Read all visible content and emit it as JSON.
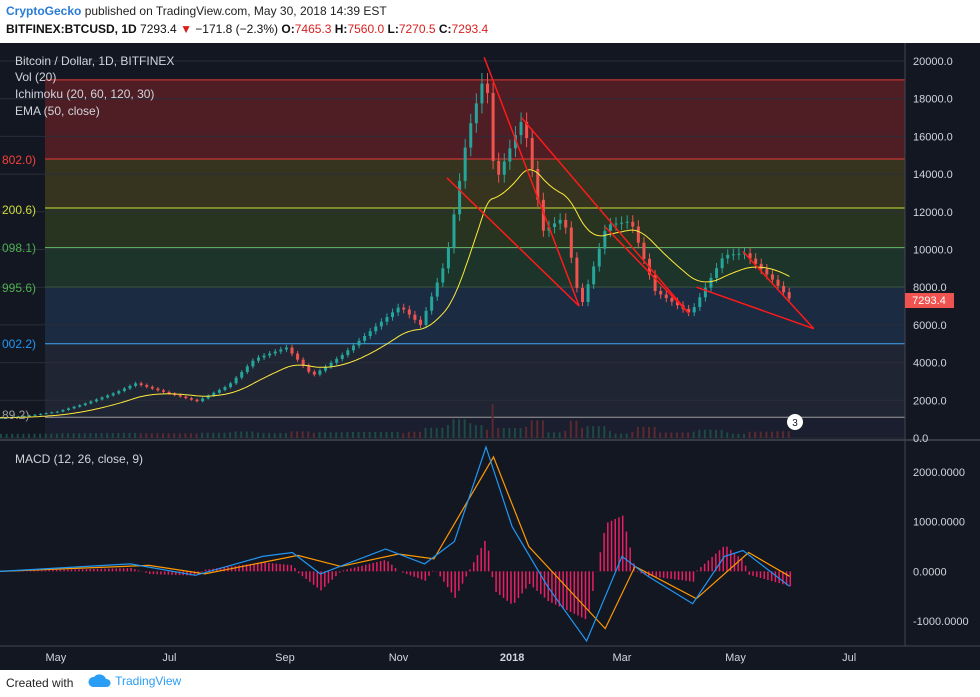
{
  "header": {
    "author": "CryptoGecko",
    "published": "published on TradingView.com, May 30, 2018 14:39 EST",
    "symbol": "BITFINEX:BTCUSD, 1D",
    "last": "7293.4",
    "change": "−171.8 (−2.3%)",
    "o_label": "O:",
    "o_value": "7465.3",
    "h_label": "H:",
    "h_value": "7560.0",
    "l_label": "L:",
    "l_value": "7270.5",
    "c_label": "C:",
    "c_value": "7293.4"
  },
  "legend": {
    "title": "Bitcoin / Dollar, 1D, BITFINEX",
    "vol": "Vol (20)",
    "ichimoku": "Ichimoku (20, 60, 120, 30)",
    "ema": "EMA (50, close)",
    "macd": "MACD (12, 26, close, 9)"
  },
  "price_label": "7293.4",
  "volume_badge": "3",
  "fib_labels": [
    "802.0)",
    "200.6)",
    "098.1)",
    "995.6)",
    "002.2)",
    "89.2)"
  ],
  "footer": {
    "created": "Created with",
    "brand": "TradingView"
  },
  "colors": {
    "up": "#26a69a",
    "down": "#ef5350",
    "background": "#131722",
    "macd_line": "#2196f3",
    "signal_line": "#ff9800",
    "hist": "#e91e63",
    "trendline": "#ff1a1a"
  },
  "chart_data": [
    {
      "type": "line",
      "title": "Bitcoin / Dollar, 1D, BITFINEX",
      "x_ticks": [
        "May",
        "Jul",
        "Sep",
        "Nov",
        "2018",
        "Mar",
        "May",
        "Jul"
      ],
      "y_ticks": [
        "20000.0",
        "18000.0",
        "16000.0",
        "14000.0",
        "12000.0",
        "10000.0",
        "8000.0",
        "6000.0",
        "4000.0",
        "2000.0",
        "0.0"
      ],
      "ylim": [
        0,
        20000
      ],
      "x_range": [
        "2017-04-01",
        "2018-07-31"
      ],
      "series": [
        {
          "values": [
            {
              "x": "2017-04-01",
              "y": 1080
            },
            {
              "x": "2017-04-15",
              "y": 1180
            },
            {
              "x": "2017-05-01",
              "y": 1400
            },
            {
              "x": "2017-05-15",
              "y": 1800
            },
            {
              "x": "2017-06-01",
              "y": 2400
            },
            {
              "x": "2017-06-12",
              "y": 2900
            },
            {
              "x": "2017-06-25",
              "y": 2500
            },
            {
              "x": "2017-07-15",
              "y": 1950
            },
            {
              "x": "2017-08-01",
              "y": 2800
            },
            {
              "x": "2017-08-15",
              "y": 4200
            },
            {
              "x": "2017-09-01",
              "y": 4800
            },
            {
              "x": "2017-09-15",
              "y": 3300
            },
            {
              "x": "2017-10-01",
              "y": 4400
            },
            {
              "x": "2017-10-20",
              "y": 6000
            },
            {
              "x": "2017-11-01",
              "y": 7000
            },
            {
              "x": "2017-11-12",
              "y": 6000
            },
            {
              "x": "2017-11-26",
              "y": 9500
            },
            {
              "x": "2017-12-07",
              "y": 16000
            },
            {
              "x": "2017-12-17",
              "y": 19500
            },
            {
              "x": "2017-12-22",
              "y": 13500
            },
            {
              "x": "2018-01-06",
              "y": 17000
            },
            {
              "x": "2018-01-17",
              "y": 11000
            },
            {
              "x": "2018-01-28",
              "y": 11700
            },
            {
              "x": "2018-02-06",
              "y": 6900
            },
            {
              "x": "2018-02-20",
              "y": 11300
            },
            {
              "x": "2018-03-05",
              "y": 11500
            },
            {
              "x": "2018-03-18",
              "y": 7800
            },
            {
              "x": "2018-04-06",
              "y": 6600
            },
            {
              "x": "2018-04-24",
              "y": 9700
            },
            {
              "x": "2018-05-05",
              "y": 9800
            },
            {
              "x": "2018-05-20",
              "y": 8400
            },
            {
              "x": "2018-05-30",
              "y": 7293
            }
          ]
        }
      ],
      "fib_levels": [
        19000,
        14800,
        12200,
        10100,
        8000,
        5000,
        1100
      ],
      "trendlines": [
        {
          "from": {
            "x": "2017-12-17",
            "y": 20200
          },
          "to": {
            "x": "2018-02-06",
            "y": 7000
          }
        },
        {
          "from": {
            "x": "2017-11-27",
            "y": 13800
          },
          "to": {
            "x": "2018-02-06",
            "y": 7000
          }
        },
        {
          "from": {
            "x": "2018-01-06",
            "y": 17000
          },
          "to": {
            "x": "2018-04-06",
            "y": 6600
          }
        },
        {
          "from": {
            "x": "2018-02-20",
            "y": 11200
          },
          "to": {
            "x": "2018-04-06",
            "y": 6600
          }
        },
        {
          "from": {
            "x": "2018-05-05",
            "y": 9900
          },
          "to": {
            "x": "2018-06-12",
            "y": 5800
          }
        },
        {
          "from": {
            "x": "2018-04-10",
            "y": 8000
          },
          "to": {
            "x": "2018-06-12",
            "y": 5800
          }
        }
      ]
    },
    {
      "type": "line",
      "title": "MACD (12, 26, close, 9)",
      "y_ticks": [
        "2000.0000",
        "1000.0000",
        "0.0000",
        "-1000.0000"
      ],
      "ylim": [
        -1500,
        2600
      ],
      "series": [
        {
          "values": [
            {
              "x": "2017-04-01",
              "y": 0
            },
            {
              "x": "2017-06-10",
              "y": 150
            },
            {
              "x": "2017-07-15",
              "y": -80
            },
            {
              "x": "2017-08-20",
              "y": 300
            },
            {
              "x": "2017-09-05",
              "y": 380
            },
            {
              "x": "2017-09-20",
              "y": -50
            },
            {
              "x": "2017-10-25",
              "y": 450
            },
            {
              "x": "2017-11-15",
              "y": 150
            },
            {
              "x": "2017-12-01",
              "y": 600
            },
            {
              "x": "2017-12-18",
              "y": 2500
            },
            {
              "x": "2018-01-01",
              "y": 900
            },
            {
              "x": "2018-01-20",
              "y": -300
            },
            {
              "x": "2018-02-10",
              "y": -1400
            },
            {
              "x": "2018-03-01",
              "y": 300
            },
            {
              "x": "2018-03-15",
              "y": -100
            },
            {
              "x": "2018-04-08",
              "y": -650
            },
            {
              "x": "2018-04-25",
              "y": 300
            },
            {
              "x": "2018-05-05",
              "y": 420
            },
            {
              "x": "2018-05-30",
              "y": -300
            }
          ]
        },
        {
          "values": [
            {
              "x": "2017-04-01",
              "y": 0
            },
            {
              "x": "2017-06-20",
              "y": 120
            },
            {
              "x": "2017-07-20",
              "y": -50
            },
            {
              "x": "2017-09-08",
              "y": 320
            },
            {
              "x": "2017-10-01",
              "y": 100
            },
            {
              "x": "2017-11-01",
              "y": 350
            },
            {
              "x": "2017-11-20",
              "y": 250
            },
            {
              "x": "2017-12-22",
              "y": 2300
            },
            {
              "x": "2018-01-10",
              "y": 500
            },
            {
              "x": "2018-02-20",
              "y": -1150
            },
            {
              "x": "2018-03-08",
              "y": 100
            },
            {
              "x": "2018-04-10",
              "y": -550
            },
            {
              "x": "2018-05-08",
              "y": 380
            },
            {
              "x": "2018-05-30",
              "y": -100
            }
          ]
        }
      ]
    }
  ]
}
